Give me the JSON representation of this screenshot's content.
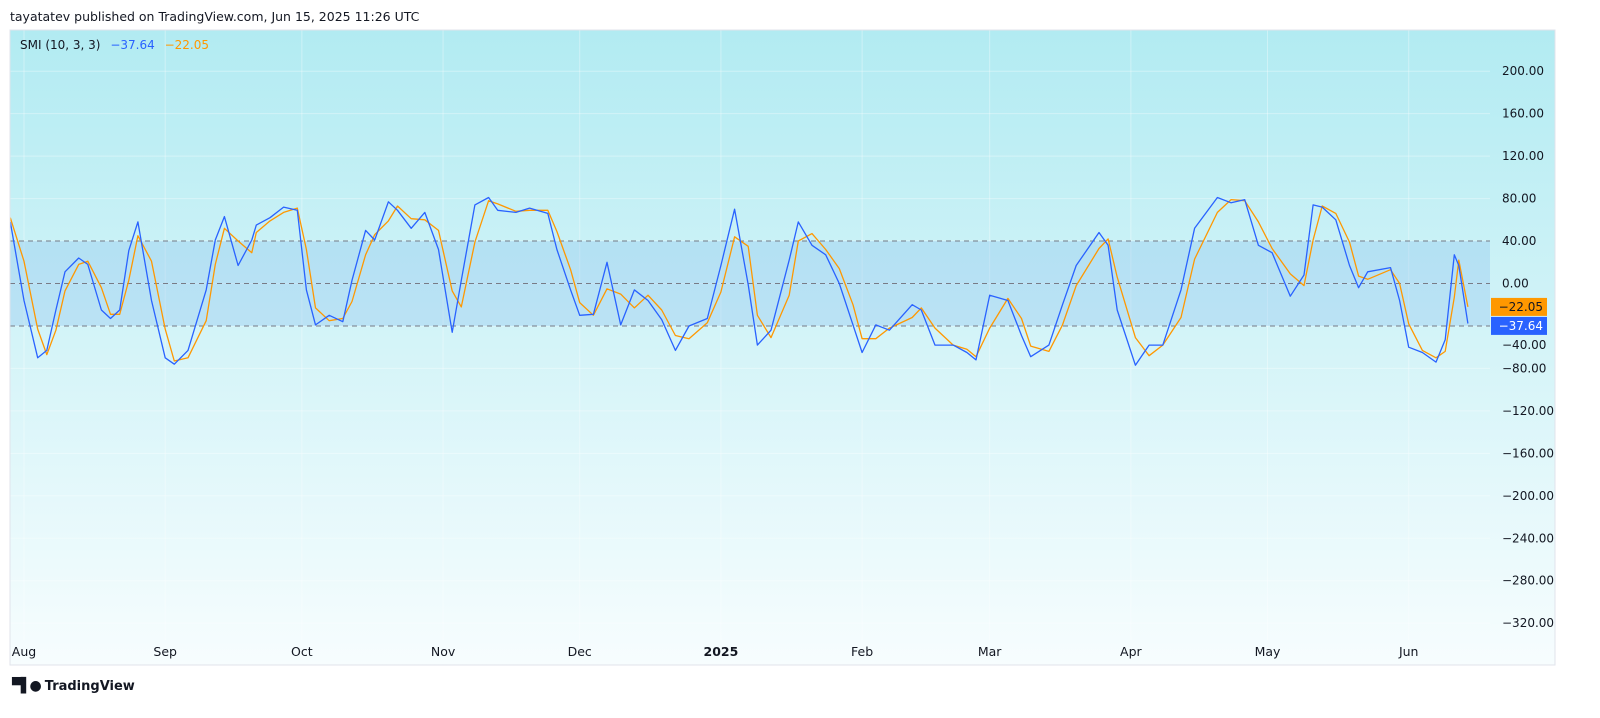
{
  "header": {
    "published": "tayatatev published on TradingView.com, Jun 15, 2025 11:26 UTC"
  },
  "legend": {
    "name": "SMI (10, 3, 3)",
    "smi_value": "−37.64",
    "signal_value": "−22.05"
  },
  "footer": {
    "brand": "TradingView"
  },
  "colors": {
    "smi": "#2962ff",
    "signal": "#ff9800",
    "band": "#7fb8ee",
    "bg_top": "#b2ebf2",
    "bg_bottom": "#f7fdfe"
  },
  "chart_data": {
    "type": "line",
    "title": "SMI (10, 3, 3)",
    "ylim": [
      -340,
      230
    ],
    "yticks": [
      200,
      160,
      120,
      80,
      40,
      0,
      -40,
      -80,
      -120,
      -160,
      -200,
      -240,
      -280,
      -320
    ],
    "ytick_labels": [
      "200.00",
      "160.00",
      "120.00",
      "80.00",
      "40.00",
      "0.00",
      "−40.00",
      "−80.00",
      "−120.00",
      "−160.00",
      "−200.00",
      "−240.00",
      "−280.00",
      "−320.00"
    ],
    "xticks": [
      {
        "label": "Aug",
        "date": "2024-08-01"
      },
      {
        "label": "Sep",
        "date": "2024-09-01"
      },
      {
        "label": "Oct",
        "date": "2024-10-01"
      },
      {
        "label": "Nov",
        "date": "2024-11-01"
      },
      {
        "label": "Dec",
        "date": "2024-12-01"
      },
      {
        "label": "2025",
        "date": "2025-01-01",
        "bold": true
      },
      {
        "label": "Feb",
        "date": "2025-02-01"
      },
      {
        "label": "Mar",
        "date": "2025-03-01"
      },
      {
        "label": "Apr",
        "date": "2025-04-01"
      },
      {
        "label": "May",
        "date": "2025-05-01"
      },
      {
        "label": "Jun",
        "date": "2025-06-01"
      }
    ],
    "bands": {
      "upper": 40,
      "lower": -40
    },
    "last_labels": {
      "signal": "−22.05",
      "smi": "−37.64"
    },
    "x": [
      "2024-07-29",
      "2024-08-01",
      "2024-08-04",
      "2024-08-06",
      "2024-08-08",
      "2024-08-10",
      "2024-08-13",
      "2024-08-15",
      "2024-08-18",
      "2024-08-20",
      "2024-08-22",
      "2024-08-24",
      "2024-08-26",
      "2024-08-29",
      "2024-09-01",
      "2024-09-03",
      "2024-09-06",
      "2024-09-10",
      "2024-09-12",
      "2024-09-14",
      "2024-09-17",
      "2024-09-20",
      "2024-09-21",
      "2024-09-24",
      "2024-09-27",
      "2024-09-30",
      "2024-10-02",
      "2024-10-04",
      "2024-10-07",
      "2024-10-10",
      "2024-10-12",
      "2024-10-15",
      "2024-10-17",
      "2024-10-20",
      "2024-10-22",
      "2024-10-25",
      "2024-10-28",
      "2024-10-31",
      "2024-11-03",
      "2024-11-05",
      "2024-11-08",
      "2024-11-11",
      "2024-11-13",
      "2024-11-17",
      "2024-11-20",
      "2024-11-24",
      "2024-11-26",
      "2024-11-29",
      "2024-12-01",
      "2024-12-04",
      "2024-12-07",
      "2024-12-10",
      "2024-12-13",
      "2024-12-16",
      "2024-12-19",
      "2024-12-22",
      "2024-12-25",
      "2024-12-29",
      "2025-01-01",
      "2025-01-04",
      "2025-01-07",
      "2025-01-09",
      "2025-01-12",
      "2025-01-16",
      "2025-01-18",
      "2025-01-21",
      "2025-01-24",
      "2025-01-27",
      "2025-01-30",
      "2025-02-01",
      "2025-02-04",
      "2025-02-07",
      "2025-02-12",
      "2025-02-14",
      "2025-02-17",
      "2025-02-21",
      "2025-02-24",
      "2025-02-26",
      "2025-03-01",
      "2025-03-05",
      "2025-03-08",
      "2025-03-10",
      "2025-03-14",
      "2025-03-17",
      "2025-03-20",
      "2025-03-25",
      "2025-03-27",
      "2025-03-29",
      "2025-04-02",
      "2025-04-05",
      "2025-04-08",
      "2025-04-12",
      "2025-04-15",
      "2025-04-20",
      "2025-04-23",
      "2025-04-26",
      "2025-04-29",
      "2025-05-02",
      "2025-05-06",
      "2025-05-09",
      "2025-05-11",
      "2025-05-13",
      "2025-05-16",
      "2025-05-19",
      "2025-05-21",
      "2025-05-23",
      "2025-05-28",
      "2025-05-30",
      "2025-06-01",
      "2025-06-04",
      "2025-06-07",
      "2025-06-09",
      "2025-06-11",
      "2025-06-12",
      "2025-06-14"
    ],
    "series": [
      {
        "name": "SMI",
        "color": "#2962ff",
        "values": [
          58,
          -16,
          -70,
          -63,
          -25,
          11,
          24,
          18,
          -25,
          -33,
          -25,
          31,
          58,
          -16,
          -70,
          -76,
          -63,
          -6,
          41,
          63,
          17,
          41,
          55,
          62,
          72,
          69,
          -6,
          -39,
          -30,
          -36,
          3,
          50,
          41,
          77,
          69,
          52,
          67,
          32,
          -46,
          3,
          74,
          81,
          69,
          67,
          71,
          66,
          32,
          -6,
          -30,
          -29,
          20,
          -39,
          -6,
          -16,
          -34,
          -63,
          -40,
          -33,
          17,
          70,
          -1,
          -58,
          -44,
          22,
          58,
          36,
          27,
          0,
          -39,
          -65,
          -39,
          -44,
          -20,
          -25,
          -58,
          -58,
          -65,
          -72,
          -11,
          -16,
          -49,
          -69,
          -58,
          -20,
          17,
          48,
          36,
          -25,
          -77,
          -58,
          -58,
          -6,
          52,
          81,
          76,
          79,
          36,
          29,
          -12,
          8,
          74,
          72,
          60,
          17,
          -4,
          11,
          15,
          -16,
          -60,
          -65,
          -74,
          -53,
          27,
          17,
          -37.64
        ]
      },
      {
        "name": "Signal",
        "color": "#ff9800",
        "values": [
          62,
          21,
          -43,
          -67,
          -44,
          -7,
          18,
          21,
          -4,
          -29,
          -29,
          3,
          45,
          21,
          -43,
          -73,
          -70,
          -35,
          18,
          52,
          40,
          29,
          48,
          59,
          67,
          71,
          32,
          -23,
          -35,
          -33,
          -17,
          27,
          46,
          59,
          73,
          61,
          60,
          50,
          -7,
          -22,
          39,
          78,
          75,
          68,
          69,
          69,
          49,
          13,
          -18,
          -30,
          -5,
          -10,
          -23,
          -11,
          -25,
          -49,
          -52,
          -37,
          -8,
          44,
          35,
          -30,
          -51,
          -11,
          40,
          47,
          32,
          14,
          -20,
          -52,
          -52,
          -42,
          -32,
          -23,
          -42,
          -58,
          -62,
          -69,
          -42,
          -14,
          -33,
          -59,
          -64,
          -39,
          -2,
          33,
          42,
          6,
          -51,
          -68,
          -58,
          -32,
          23,
          67,
          79,
          78,
          58,
          33,
          9,
          -2,
          41,
          73,
          66,
          39,
          7,
          4,
          13,
          0,
          -38,
          -63,
          -70,
          -64,
          -13,
          22,
          -22.05
        ]
      }
    ]
  }
}
